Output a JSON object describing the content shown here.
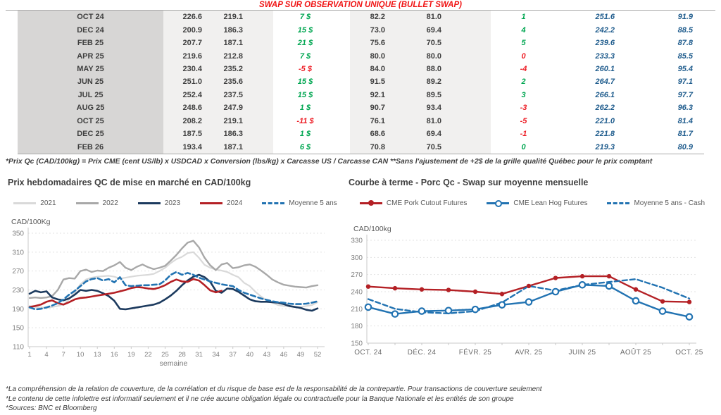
{
  "page": {
    "title": "SWAP SUR OBSERVATION UNIQUE (BULLET SWAP)",
    "table_footnote": "*Prix Qc (CAD/100kg) = Prix CME (cent US/lb) x USDCAD x Conversion (lbs/kg) x Carcasse US / Carcasse CAN **Sans l'ajustement de +2$ de la grille qualité Québec pour le prix comptant",
    "footnotes": [
      "*La compréhension de la relation de couverture, de la corrélation et du risque de base est de la responsabilité de la contrepartie. Pour transactions de couverture seulement",
      "*Le contenu de cette infolettre est informatif seulement et il ne crée aucune obligation légale ou contractuelle pour la Banque Nationale et les entités de son groupe",
      "*Sources: BNC et Bloomberg"
    ]
  },
  "colors": {
    "positive": "#00a651",
    "negative": "#ed1c24",
    "swap_blue": "#1f5c8d",
    "red_series": "#b42025",
    "navy_series": "#1c3a5e",
    "blue_series": "#2273b2",
    "gray_2022": "#a8a8a8",
    "gray_2021": "#d9d9d9"
  },
  "table": {
    "rows": [
      {
        "month": "OCT 24",
        "prix_qc": "226.6",
        "prix_comptant": "219.1",
        "diff_cad": "7 $",
        "diff_cad_color": "g",
        "cme": "82.2",
        "cme_comptant": "81.0",
        "diff_us": "1",
        "diff_us_color": "g",
        "swap_cad": "251.6",
        "swap_us": "91.9"
      },
      {
        "month": "DEC 24",
        "prix_qc": "200.9",
        "prix_comptant": "186.3",
        "diff_cad": "15 $",
        "diff_cad_color": "g",
        "cme": "73.0",
        "cme_comptant": "69.4",
        "diff_us": "4",
        "diff_us_color": "g",
        "swap_cad": "242.2",
        "swap_us": "88.5"
      },
      {
        "month": "FEB 25",
        "prix_qc": "207.7",
        "prix_comptant": "187.1",
        "diff_cad": "21 $",
        "diff_cad_color": "g",
        "cme": "75.6",
        "cme_comptant": "70.5",
        "diff_us": "5",
        "diff_us_color": "g",
        "swap_cad": "239.6",
        "swap_us": "87.8"
      },
      {
        "month": "APR 25",
        "prix_qc": "219.6",
        "prix_comptant": "212.8",
        "diff_cad": "7 $",
        "diff_cad_color": "g",
        "cme": "80.0",
        "cme_comptant": "80.0",
        "diff_us": "0",
        "diff_us_color": "r",
        "swap_cad": "233.3",
        "swap_us": "85.5"
      },
      {
        "month": "MAY 25",
        "prix_qc": "230.4",
        "prix_comptant": "235.2",
        "diff_cad": "-5 $",
        "diff_cad_color": "r",
        "cme": "84.0",
        "cme_comptant": "88.0",
        "diff_us": "-4",
        "diff_us_color": "r",
        "swap_cad": "260.1",
        "swap_us": "95.4"
      },
      {
        "month": "JUN 25",
        "prix_qc": "251.0",
        "prix_comptant": "235.6",
        "diff_cad": "15 $",
        "diff_cad_color": "g",
        "cme": "91.5",
        "cme_comptant": "89.2",
        "diff_us": "2",
        "diff_us_color": "g",
        "swap_cad": "264.7",
        "swap_us": "97.1"
      },
      {
        "month": "JUL 25",
        "prix_qc": "252.4",
        "prix_comptant": "237.5",
        "diff_cad": "15 $",
        "diff_cad_color": "g",
        "cme": "92.1",
        "cme_comptant": "89.5",
        "diff_us": "3",
        "diff_us_color": "g",
        "swap_cad": "266.1",
        "swap_us": "97.7"
      },
      {
        "month": "AUG 25",
        "prix_qc": "248.6",
        "prix_comptant": "247.9",
        "diff_cad": "1 $",
        "diff_cad_color": "g",
        "cme": "90.7",
        "cme_comptant": "93.4",
        "diff_us": "-3",
        "diff_us_color": "r",
        "swap_cad": "262.2",
        "swap_us": "96.3"
      },
      {
        "month": "OCT 25",
        "prix_qc": "208.2",
        "prix_comptant": "219.1",
        "diff_cad": "-11 $",
        "diff_cad_color": "r",
        "cme": "76.1",
        "cme_comptant": "81.0",
        "diff_us": "-5",
        "diff_us_color": "r",
        "swap_cad": "221.0",
        "swap_us": "81.4"
      },
      {
        "month": "DEC 25",
        "prix_qc": "187.5",
        "prix_comptant": "186.3",
        "diff_cad": "1 $",
        "diff_cad_color": "g",
        "cme": "68.6",
        "cme_comptant": "69.4",
        "diff_us": "-1",
        "diff_us_color": "r",
        "swap_cad": "221.8",
        "swap_us": "81.7"
      },
      {
        "month": "FEB 26",
        "prix_qc": "193.4",
        "prix_comptant": "187.1",
        "diff_cad": "6 $",
        "diff_cad_color": "g",
        "cme": "70.8",
        "cme_comptant": "70.5",
        "diff_us": "0",
        "diff_us_color": "g",
        "swap_cad": "219.3",
        "swap_us": "80.9"
      }
    ]
  },
  "charts": [
    {
      "title": "Prix hebdomadaires QC de mise en marché en CAD/100kg",
      "unit_label": "CAD/100Kg",
      "chart_data": {
        "type": "line",
        "xlabel": "semaine",
        "x_range": [
          1,
          52
        ],
        "xticks": [
          1,
          4,
          7,
          10,
          13,
          16,
          19,
          22,
          25,
          28,
          31,
          34,
          37,
          40,
          43,
          46,
          49,
          52
        ],
        "ylim": [
          110,
          350
        ],
        "ytick_step": 40,
        "grid": "dashed-horizontal",
        "legend_position": "top",
        "series": [
          {
            "name": "2021",
            "color": "#d9d9d9",
            "width": 2.2,
            "values": [
              196,
              194,
              193,
              192,
              194,
              196,
              199,
              210,
              225,
              242,
              252,
              256,
              258,
              259,
              260,
              258,
              254,
              256,
              258,
              260,
              261,
              262,
              264,
              270,
              277,
              287,
              295,
              300,
              308,
              310,
              298,
              283,
              277,
              273,
              271,
              268,
              262,
              257,
              245,
              238,
              226,
              216,
              208,
              203,
              198,
              196,
              195,
              194,
              194,
              196,
              198,
              204
            ]
          },
          {
            "name": "2022",
            "color": "#a8a8a8",
            "width": 2.4,
            "values": [
              213,
              214,
              213,
              214,
              217,
              230,
              252,
              255,
              254,
              270,
              273,
              268,
              271,
              270,
              277,
              282,
              289,
              277,
              272,
              279,
              284,
              278,
              274,
              277,
              281,
              292,
              304,
              318,
              330,
              334,
              320,
              298,
              282,
              272,
              284,
              287,
              276,
              278,
              282,
              284,
              279,
              271,
              262,
              252,
              246,
              241,
              239,
              237,
              236,
              235,
              238,
              240
            ]
          },
          {
            "name": "2023",
            "color": "#1c3a5e",
            "width": 2.6,
            "values": [
              222,
              228,
              225,
              227,
              214,
              210,
              208,
              212,
              220,
              230,
              228,
              230,
              228,
              223,
              217,
              207,
              190,
              189,
              191,
              193,
              195,
              197,
              199,
              203,
              210,
              218,
              228,
              240,
              250,
              258,
              262,
              257,
              247,
              228,
              224,
              233,
              232,
              226,
              218,
              210,
              206,
              205,
              205,
              204,
              203,
              200,
              196,
              194,
              192,
              188,
              186,
              191
            ]
          },
          {
            "name": "2024",
            "color": "#b42025",
            "width": 2.6,
            "values": [
              194,
              196,
              199,
              205,
              208,
              202,
              199,
              204,
              210,
              213,
              214,
              216,
              218,
              220,
              222,
              224,
              227,
              230,
              234,
              236,
              235,
              233,
              232,
              235,
              240,
              247,
              252,
              248,
              247,
              253,
              250,
              240,
              229,
              225,
              228
            ]
          },
          {
            "name": "Moyenne 5 ans",
            "color": "#2273b2",
            "width": 2.6,
            "dash": "7 4",
            "values": [
              193,
              189,
              190,
              193,
              197,
              202,
              210,
              220,
              228,
              238,
              248,
              253,
              255,
              250,
              253,
              246,
              257,
              240,
              238,
              239,
              240,
              240,
              241,
              242,
              250,
              262,
              268,
              262,
              266,
              262,
              256,
              252,
              248,
              245,
              242,
              240,
              238,
              230,
              224,
              220,
              216,
              212,
              209,
              206,
              204,
              203,
              201,
              200,
              200,
              201,
              203,
              206
            ]
          }
        ]
      }
    },
    {
      "title": "Courbe à terme - Porc Qc - Swap sur moyenne mensuelle",
      "unit_label": "CAD/100kg",
      "chart_data": {
        "type": "line",
        "x_months": 13,
        "xtick_labels": [
          "OCT. 24",
          "DÉC. 24",
          "FÉVR. 25",
          "AVR. 25",
          "JUIN 25",
          "AOÛT 25",
          "OCT. 25"
        ],
        "xtick_every": 2,
        "ylim": [
          150,
          330
        ],
        "ytick_step": 30,
        "grid": "dashed-horizontal",
        "legend_position": "top",
        "series": [
          {
            "name": "CME Pork Cutout Futures",
            "color": "#b42025",
            "width": 2.4,
            "marker": "dot",
            "values": [
              249,
              246,
              244,
              243,
              240,
              236,
              250,
              264,
              267,
              267,
              244,
              223,
              222
            ]
          },
          {
            "name": "CME Lean Hog Futures",
            "color": "#2273b2",
            "width": 2.4,
            "marker": "circle",
            "values": [
              213,
              201,
              206,
              207,
              209,
              217,
              222,
              240,
              252,
              250,
              224,
              206,
              196
            ]
          },
          {
            "name": "Moyenne 5 ans - Cash",
            "color": "#2273b2",
            "width": 2.4,
            "dash": "7 4",
            "values": [
              227,
              210,
              204,
              202,
              206,
              221,
              250,
              242,
              252,
              257,
              262,
              247,
              228
            ]
          }
        ]
      }
    }
  ]
}
